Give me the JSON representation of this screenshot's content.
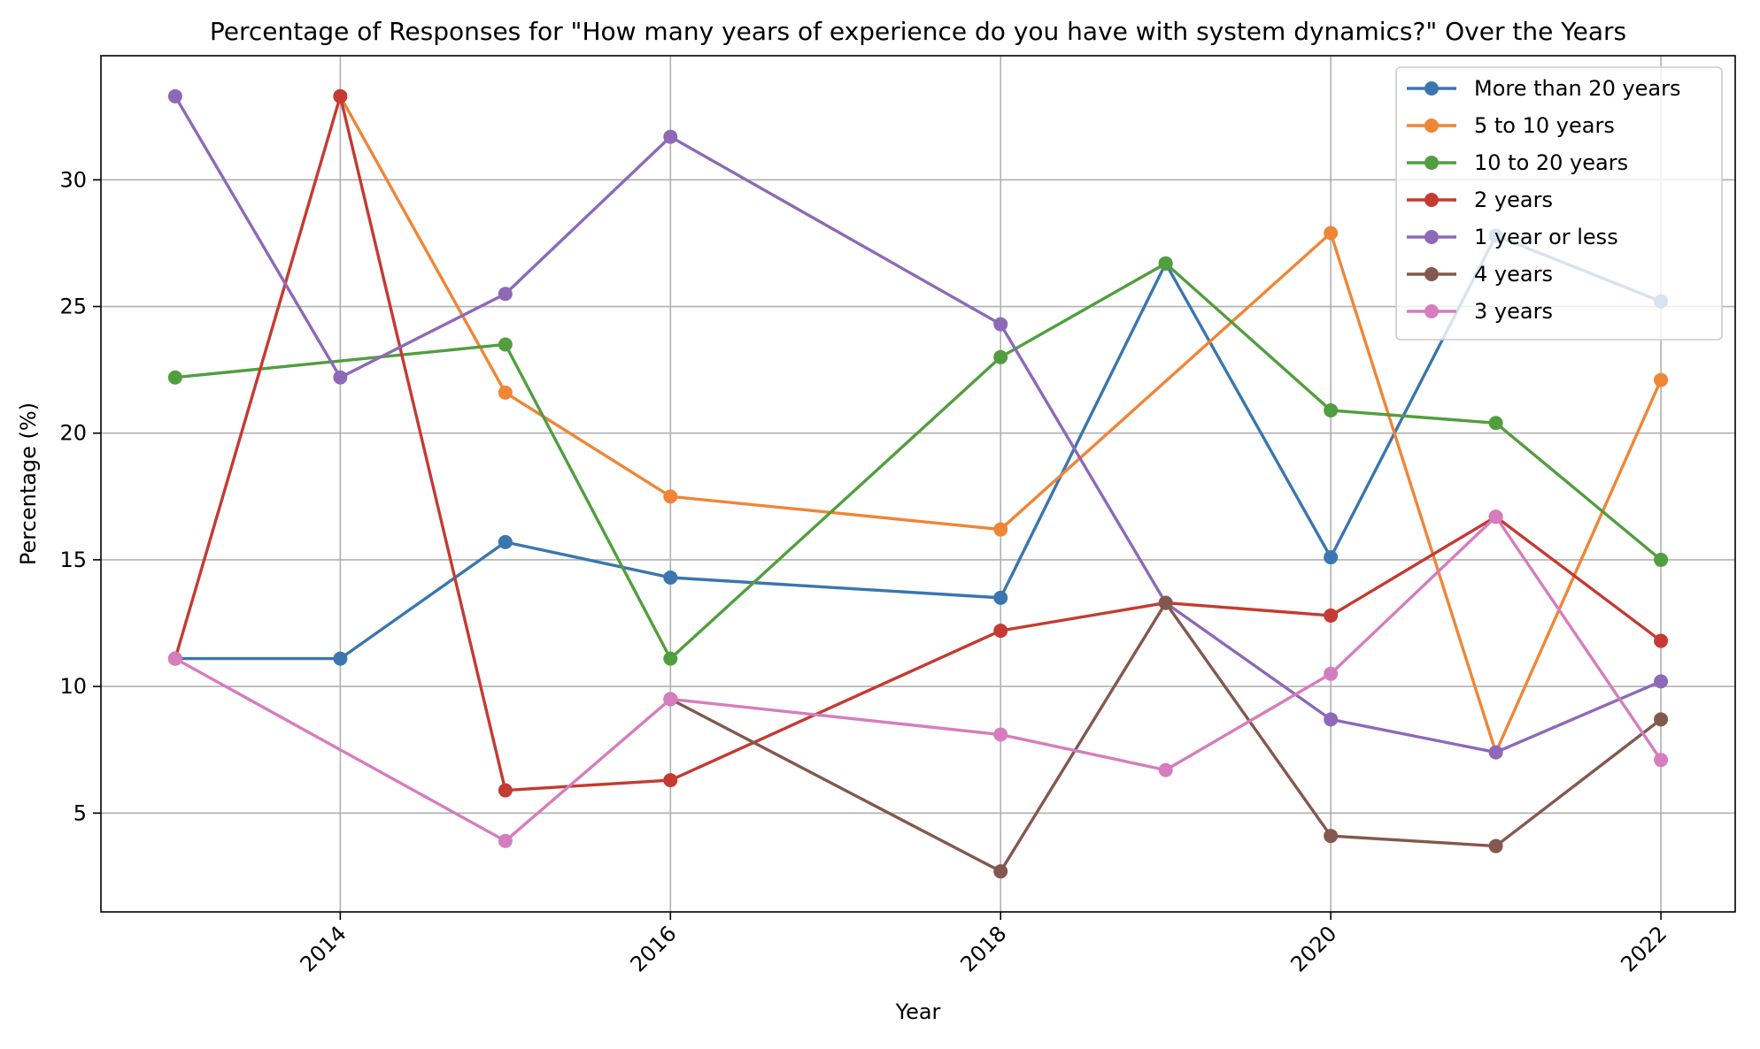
{
  "chart_data": {
    "type": "line",
    "title": "Percentage of Responses for \"How many years of experience do you have with system dynamics?\" Over the Years",
    "xlabel": "Year",
    "ylabel": "Percentage (%)",
    "xlim": [
      2012.55,
      2022.45
    ],
    "ylim": [
      1.1,
      34.9
    ],
    "xticks": [
      2014,
      2016,
      2018,
      2020,
      2022
    ],
    "xtick_labels": [
      "2014",
      "2016",
      "2018",
      "2020",
      "2022"
    ],
    "xtick_rotation": 45,
    "yticks": [
      5,
      10,
      15,
      20,
      25,
      30
    ],
    "ytick_labels": [
      "5",
      "10",
      "15",
      "20",
      "25",
      "30"
    ],
    "grid": true,
    "legend_position": "top-right",
    "series": [
      {
        "name": "More than 20 years",
        "color": "#3a76af",
        "points": [
          [
            2013,
            11.1
          ],
          [
            2014,
            11.1
          ],
          [
            2015,
            15.7
          ],
          [
            2016,
            14.3
          ],
          [
            2018,
            13.5
          ],
          [
            2019,
            26.7
          ],
          [
            2020,
            15.1
          ],
          [
            2021,
            27.8
          ],
          [
            2022,
            25.2
          ]
        ]
      },
      {
        "name": "5 to 10 years",
        "color": "#ef8636",
        "points": [
          [
            2014,
            33.3
          ],
          [
            2015,
            21.6
          ],
          [
            2016,
            17.5
          ],
          [
            2018,
            16.2
          ],
          [
            2020,
            27.9
          ],
          [
            2021,
            7.4
          ],
          [
            2022,
            22.1
          ]
        ]
      },
      {
        "name": "10 to 20 years",
        "color": "#519e3e",
        "points": [
          [
            2013,
            22.2
          ],
          [
            2015,
            23.5
          ],
          [
            2016,
            11.1
          ],
          [
            2018,
            23.0
          ],
          [
            2019,
            26.7
          ],
          [
            2020,
            20.9
          ],
          [
            2021,
            20.4
          ],
          [
            2022,
            15.0
          ]
        ]
      },
      {
        "name": "2 years",
        "color": "#c53a32",
        "points": [
          [
            2013,
            11.1
          ],
          [
            2014,
            33.3
          ],
          [
            2015,
            5.9
          ],
          [
            2016,
            6.3
          ],
          [
            2018,
            12.2
          ],
          [
            2019,
            13.3
          ],
          [
            2020,
            12.8
          ],
          [
            2021,
            16.7
          ],
          [
            2022,
            11.8
          ]
        ]
      },
      {
        "name": "1 year or less",
        "color": "#8d69b8",
        "points": [
          [
            2013,
            33.3
          ],
          [
            2014,
            22.2
          ],
          [
            2015,
            25.5
          ],
          [
            2016,
            31.7
          ],
          [
            2018,
            24.3
          ],
          [
            2019,
            13.3
          ],
          [
            2020,
            8.7
          ],
          [
            2021,
            7.4
          ],
          [
            2022,
            10.2
          ]
        ]
      },
      {
        "name": "4 years",
        "color": "#84584e",
        "points": [
          [
            2016,
            9.5
          ],
          [
            2018,
            2.7
          ],
          [
            2019,
            13.3
          ],
          [
            2020,
            4.1
          ],
          [
            2021,
            3.7
          ],
          [
            2022,
            8.7
          ]
        ]
      },
      {
        "name": "3 years",
        "color": "#d57dbe",
        "points": [
          [
            2013,
            11.1
          ],
          [
            2015,
            3.9
          ],
          [
            2016,
            9.5
          ],
          [
            2018,
            8.1
          ],
          [
            2019,
            6.7
          ],
          [
            2020,
            10.5
          ],
          [
            2021,
            16.7
          ],
          [
            2022,
            7.1
          ]
        ]
      }
    ]
  }
}
